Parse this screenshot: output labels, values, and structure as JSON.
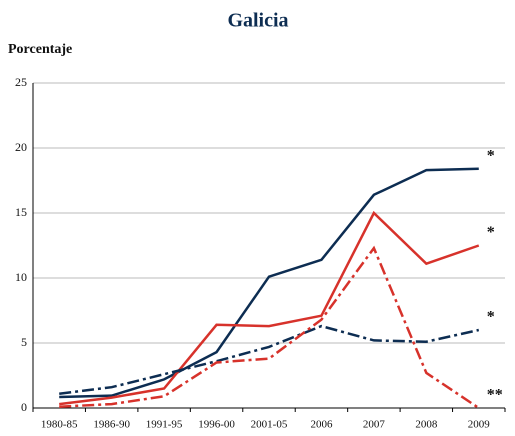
{
  "chart_data": {
    "type": "line",
    "title": "Galicia",
    "y_label": "Porcentaje",
    "categories": [
      "1980-85",
      "1986-90",
      "1991-95",
      "1996-00",
      "2001-05",
      "2006",
      "2007",
      "2008",
      "2009"
    ],
    "series": [
      {
        "color": "#0d2d52",
        "dash": "solid",
        "values": [
          0.85,
          0.95,
          2.2,
          4.3,
          10.1,
          11.4,
          16.4,
          18.3,
          18.4
        ],
        "note": "*"
      },
      {
        "color": "#d7322b",
        "dash": "solid",
        "values": [
          0.3,
          0.8,
          1.5,
          6.4,
          6.3,
          7.1,
          15.0,
          11.1,
          12.5
        ],
        "note": "*"
      },
      {
        "color": "#0d2d52",
        "dash": "dashdot",
        "values": [
          1.1,
          1.6,
          2.6,
          3.6,
          4.7,
          6.3,
          5.2,
          5.1,
          6.0
        ],
        "note": "*"
      },
      {
        "color": "#d7322b",
        "dash": "dashdot",
        "values": [
          0.1,
          0.3,
          0.9,
          3.5,
          3.8,
          6.8,
          12.3,
          2.7,
          0.0
        ],
        "note": "**"
      }
    ],
    "ylim": [
      0,
      25
    ],
    "yticks": [
      0,
      5,
      10,
      15,
      20,
      25
    ],
    "grid": true
  }
}
